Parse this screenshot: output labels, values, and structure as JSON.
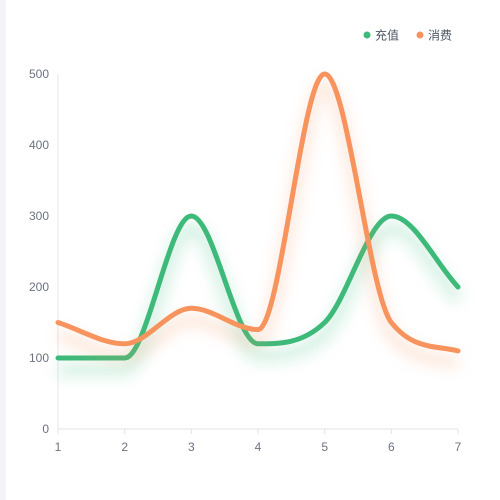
{
  "chart_data": {
    "type": "line",
    "x": [
      1,
      2,
      3,
      4,
      5,
      6,
      7
    ],
    "xlim": [
      1,
      7
    ],
    "ylim": [
      0,
      500
    ],
    "yticks": [
      0,
      100,
      200,
      300,
      400,
      500
    ],
    "xticks": [
      1,
      2,
      3,
      4,
      5,
      6,
      7
    ],
    "legend": "top-right",
    "grid": false,
    "series": [
      {
        "name": "充值",
        "color": "#3dba7a",
        "values": [
          100,
          100,
          300,
          120,
          150,
          300,
          200
        ]
      },
      {
        "name": "消费",
        "color": "#f7935d",
        "values": [
          150,
          120,
          170,
          140,
          500,
          150,
          110
        ]
      }
    ]
  }
}
